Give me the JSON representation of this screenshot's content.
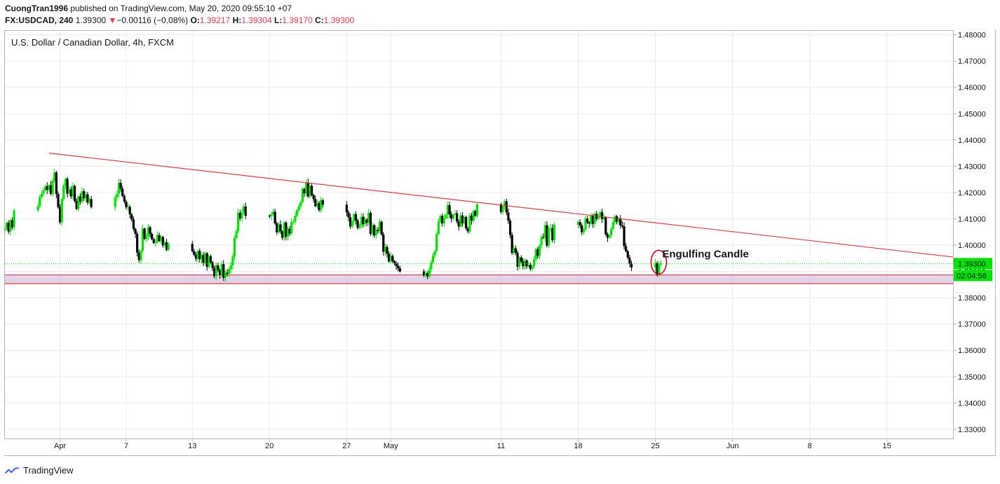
{
  "header": {
    "author": "CuongTran1996",
    "published_text": "published on TradingView.com, May 20, 2020 09:55:10 +07",
    "symbol": "FX:USDCAD, 240",
    "last_price": "1.39300",
    "arrow": "▼",
    "change": "−0.00116 (−0.08%)",
    "o_label": "O:",
    "o_value": "1.39217",
    "h_label": "H:",
    "h_value": "1.39304",
    "l_label": "L:",
    "l_value": "1.39170",
    "c_label": "C:",
    "c_value": "1.39300"
  },
  "chart_title": "U.S. Dollar / Canadian Dollar, 4h, FXCM",
  "footer": {
    "brand": "TradingView"
  },
  "colors": {
    "up": "#00e200",
    "down": "#000000",
    "trendline": "#f23645",
    "zone_fill": "#d9cbe6",
    "grid": "#e7ebf0",
    "price_label_bg": "#00e200"
  },
  "chart_data": {
    "type": "candlestick",
    "title": "U.S. Dollar / Canadian Dollar, 4h, FXCM",
    "y_ticks": [
      "1.48000",
      "1.47000",
      "1.46000",
      "1.45000",
      "1.44000",
      "1.43000",
      "1.42000",
      "1.41000",
      "1.40000",
      "1.39000",
      "1.38000",
      "1.37000",
      "1.36000",
      "1.35000",
      "1.34000",
      "1.33000"
    ],
    "y_range": [
      1.3265,
      1.4815
    ],
    "x_ticks": [
      "Apr",
      "7",
      "13",
      "20",
      "27",
      "May",
      "11",
      "18",
      "25",
      "Jun",
      "8",
      "15"
    ],
    "x_range": [
      "2020-03-27",
      "2020-06-21"
    ],
    "closes": [
      1.4062,
      1.4085,
      1.4052,
      1.4095,
      1.4068,
      1.4132,
      1.4148,
      1.4183,
      1.4195,
      1.4208,
      1.4224,
      1.421,
      1.4228,
      1.4195,
      1.4245,
      1.4277,
      1.4195,
      1.4145,
      1.4087,
      1.4175,
      1.4227,
      1.4252,
      1.4196,
      1.4212,
      1.4185,
      1.4225,
      1.4168,
      1.4138,
      1.4185,
      1.4165,
      1.4205,
      1.4178,
      1.4193,
      1.4162,
      1.4175,
      1.4145,
      1.4182,
      1.4195,
      1.4237,
      1.4215,
      1.4187,
      1.4166,
      1.4144,
      1.4146,
      1.4118,
      1.4098,
      1.4062,
      1.4043,
      1.3972,
      1.3943,
      1.3978,
      1.4063,
      1.4024,
      1.4032,
      1.4068,
      1.4043,
      1.4023,
      1.4008,
      1.4012,
      1.4038,
      1.4016,
      1.4031,
      1.3999,
      1.4011,
      1.3982,
      1.4005,
      1.3977,
      1.3963,
      1.3948,
      1.3978,
      1.3947,
      1.3962,
      1.3932,
      1.3969,
      1.3917,
      1.3958,
      1.3935,
      1.3913,
      1.3882,
      1.3923,
      1.3905,
      1.3887,
      1.3928,
      1.3876,
      1.3895,
      1.3891,
      1.3908,
      1.3923,
      1.3957,
      1.4027,
      1.4054,
      1.4123,
      1.4102,
      1.4126,
      1.4147,
      1.4112,
      1.4111,
      1.4117,
      1.4127,
      1.4083,
      1.4049,
      1.4079,
      1.4052,
      1.4028,
      1.4086,
      1.4032,
      1.4062,
      1.4044,
      1.4088,
      1.4089,
      1.4112,
      1.4133,
      1.4148,
      1.4164,
      1.4214,
      1.4197,
      1.4238,
      1.4185,
      1.4226,
      1.419,
      1.4175,
      1.4148,
      1.416,
      1.4133,
      1.4171,
      1.4154,
      1.4125,
      1.4106,
      1.4071,
      1.4091,
      1.4118,
      1.4094,
      1.4066,
      1.4075,
      1.4108,
      1.408,
      1.4097,
      1.4085,
      1.4123,
      1.4043,
      1.4076,
      1.4037,
      1.4058,
      1.4054,
      1.4089,
      1.4041,
      1.3975,
      1.3993,
      1.3967,
      1.3938,
      1.3959,
      1.3939,
      1.3931,
      1.3921,
      1.3912,
      1.39,
      1.3885,
      1.3894,
      1.3881,
      1.3908,
      1.3934,
      1.3961,
      1.3978,
      1.4042,
      1.4091,
      1.4111,
      1.4083,
      1.4102,
      1.4116,
      1.4152,
      1.4117,
      1.4101,
      1.4116,
      1.4121,
      1.4091,
      1.4071,
      1.4113,
      1.4083,
      1.4107,
      1.4064,
      1.4052,
      1.4113,
      1.4093,
      1.413,
      1.4112,
      1.4156,
      1.4126,
      1.4148,
      1.4167,
      1.4124,
      1.4093,
      1.4039,
      1.397,
      1.3988,
      1.3971,
      1.3918,
      1.3953,
      1.3938,
      1.392,
      1.3942,
      1.3919,
      1.3925,
      1.3909,
      1.392,
      1.3946,
      1.3985,
      1.3959,
      1.3999,
      1.4031,
      1.4028,
      1.4076,
      1.3998,
      1.4063,
      1.4065,
      1.4019,
      1.4078,
      1.4088,
      1.4075,
      1.4049,
      1.406,
      1.4101,
      1.4087,
      1.4082,
      1.4112,
      1.4081,
      1.4119,
      1.41,
      1.4107,
      1.4126,
      1.4099,
      1.4106,
      1.4041,
      1.4028,
      1.4038,
      1.4062,
      1.4087,
      1.411,
      1.4089,
      1.4102,
      1.4075,
      1.4072,
      1.3996,
      1.3977,
      1.3953,
      1.393,
      1.3915,
      1.3932,
      1.3887,
      1.3927,
      1.393
    ],
    "current_price": "1.39300",
    "countdown": "02:04:56",
    "trendline": {
      "from": [
        "2020-03-31",
        1.435
      ],
      "to": [
        "2020-06-21",
        1.3955
      ]
    },
    "support_zone": {
      "top": 1.3887,
      "bottom": 1.3854
    },
    "annotation": "Engulfing Candle"
  }
}
